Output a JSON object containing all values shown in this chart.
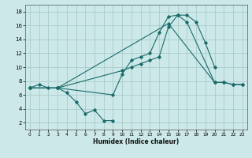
{
  "xlabel": "Humidex (Indice chaleur)",
  "xlim": [
    -0.5,
    23.5
  ],
  "ylim": [
    1,
    19
  ],
  "xticks": [
    0,
    1,
    2,
    3,
    4,
    5,
    6,
    7,
    8,
    9,
    10,
    11,
    12,
    13,
    14,
    15,
    16,
    17,
    18,
    19,
    20,
    21,
    22,
    23
  ],
  "yticks": [
    2,
    4,
    6,
    8,
    10,
    12,
    14,
    16,
    18
  ],
  "background_color": "#cce8e8",
  "grid_color": "#aacccc",
  "line_color": "#1a6b6b",
  "series": [
    {
      "x": [
        0,
        1,
        2,
        3,
        4,
        5,
        6,
        7,
        8,
        9
      ],
      "y": [
        7.0,
        7.5,
        7.0,
        7.0,
        6.3,
        5.0,
        3.3,
        3.8,
        2.3,
        2.3
      ]
    },
    {
      "x": [
        0,
        3,
        9,
        10,
        11,
        12,
        13,
        14,
        15,
        16,
        17,
        18,
        19,
        20
      ],
      "y": [
        7.0,
        7.0,
        6.0,
        9.0,
        11.0,
        11.5,
        12.0,
        15.0,
        17.3,
        17.5,
        17.5,
        16.5,
        13.5,
        10.0
      ]
    },
    {
      "x": [
        0,
        3,
        15,
        20,
        21,
        22,
        23
      ],
      "y": [
        7.0,
        7.0,
        16.3,
        7.8,
        7.8,
        7.5,
        7.5
      ]
    },
    {
      "x": [
        0,
        3,
        10,
        11,
        12,
        13,
        14,
        15,
        16,
        17,
        20,
        21,
        22,
        23
      ],
      "y": [
        7.0,
        7.0,
        9.5,
        10.0,
        10.5,
        11.0,
        11.5,
        15.8,
        17.5,
        16.5,
        7.8,
        7.8,
        7.5,
        7.5
      ]
    }
  ]
}
